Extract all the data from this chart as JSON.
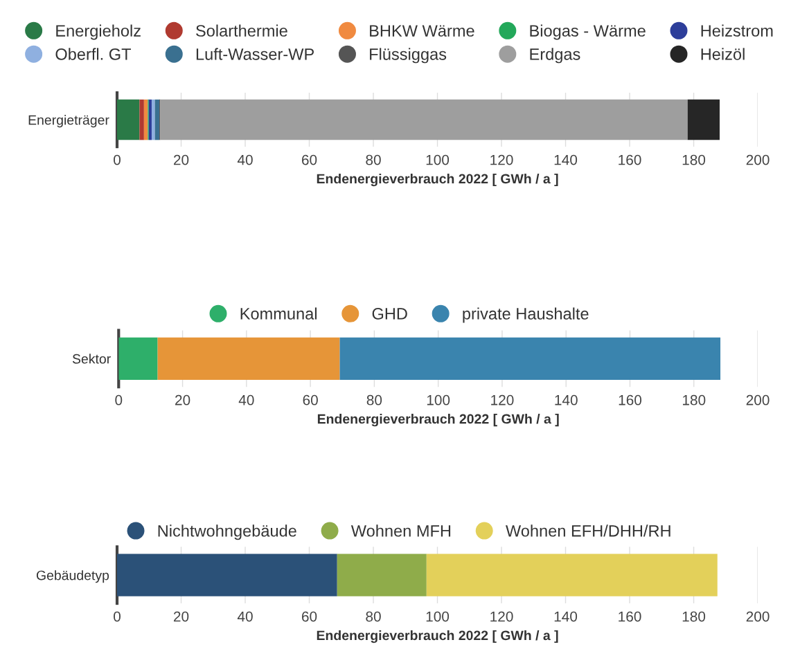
{
  "chart_data": [
    {
      "type": "bar",
      "orientation": "horizontal",
      "stacked": true,
      "categories": [
        "Energieträger"
      ],
      "xlabel": "Endenergieverbrauch 2022 [ GWh / a ]",
      "xlim": [
        0,
        200
      ],
      "xticks": [
        0,
        20,
        40,
        60,
        80,
        100,
        120,
        140,
        160,
        180,
        200
      ],
      "grid": "x",
      "legend": "top",
      "series": [
        {
          "name": "Energieholz",
          "color": "#2a7a47",
          "values": [
            7.0
          ]
        },
        {
          "name": "Solarthermie",
          "color": "#b03a30",
          "values": [
            1.4
          ]
        },
        {
          "name": "BHKW Wärme",
          "color": "#f08a40",
          "values": [
            1.2
          ]
        },
        {
          "name": "Biogas - Wärme",
          "color": "#23a85a",
          "values": [
            0.3
          ]
        },
        {
          "name": "Heizstrom",
          "color": "#2d3e9a",
          "values": [
            0.9
          ]
        },
        {
          "name": "Oberfl. GT",
          "color": "#8fb0e0",
          "values": [
            1.0
          ]
        },
        {
          "name": "Luft-Wasser-WP",
          "color": "#3a7090",
          "values": [
            1.4
          ]
        },
        {
          "name": "Flüssiggas",
          "color": "#555555",
          "values": [
            0.3
          ]
        },
        {
          "name": "Erdgas",
          "color": "#9e9e9e",
          "values": [
            164.6
          ]
        },
        {
          "name": "Heizöl",
          "color": "#262626",
          "values": [
            10.0
          ]
        }
      ]
    },
    {
      "type": "bar",
      "orientation": "horizontal",
      "stacked": true,
      "categories": [
        "Sektor"
      ],
      "xlabel": "Endenergieverbrauch 2022 [ GWh / a ]",
      "xlim": [
        0,
        200
      ],
      "xticks": [
        0,
        20,
        40,
        60,
        80,
        100,
        120,
        140,
        160,
        180,
        200
      ],
      "grid": "x",
      "legend": "top",
      "series": [
        {
          "name": "Kommunal",
          "color": "#2eaf6a",
          "values": [
            12.2
          ]
        },
        {
          "name": "GHD",
          "color": "#e69538",
          "values": [
            57.0
          ]
        },
        {
          "name": "private Haushalte",
          "color": "#3a84ae",
          "values": [
            119.1
          ]
        }
      ]
    },
    {
      "type": "bar",
      "orientation": "horizontal",
      "stacked": true,
      "categories": [
        "Gebäudetyp"
      ],
      "xlabel": "Endenergieverbrauch 2022 [ GWh / a ]",
      "xlim": [
        0,
        200
      ],
      "xticks": [
        0,
        20,
        40,
        60,
        80,
        100,
        120,
        140,
        160,
        180,
        200
      ],
      "grid": "x",
      "legend": "top",
      "series": [
        {
          "name": "Nichtwohngebäude",
          "color": "#2b5178",
          "values": [
            68.7
          ]
        },
        {
          "name": "Wohnen MFH",
          "color": "#8fac4a",
          "values": [
            27.9
          ]
        },
        {
          "name": "Wohnen EFH/DHH/RH",
          "color": "#e3d05a",
          "values": [
            90.8
          ]
        }
      ]
    }
  ]
}
